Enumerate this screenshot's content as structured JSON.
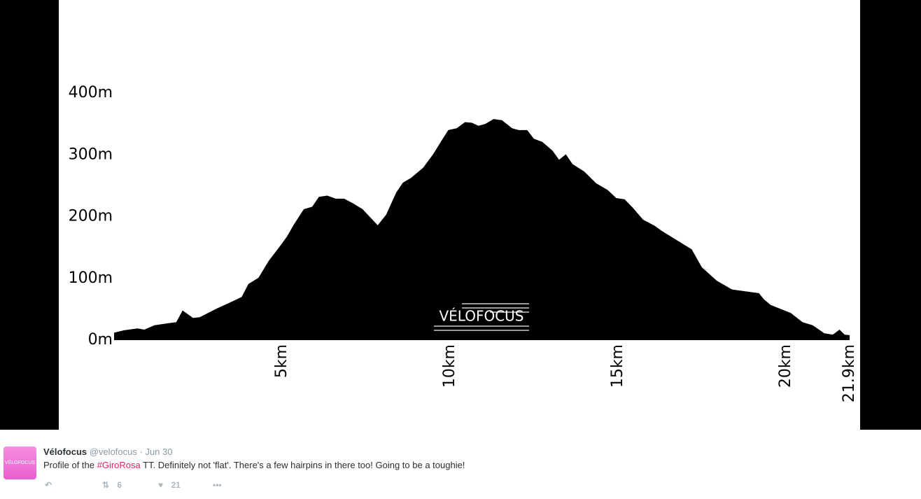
{
  "chart_data": {
    "type": "area",
    "watermark": "VÉLOFOCUS",
    "color": "#000000",
    "x": [
      0,
      0.3,
      0.7,
      0.9,
      1.2,
      1.7,
      1.85,
      2.04,
      2.35,
      2.55,
      3.05,
      3.45,
      3.8,
      4.0,
      4.3,
      4.6,
      4.95,
      5.15,
      5.35,
      5.65,
      5.9,
      6.1,
      6.35,
      6.6,
      6.85,
      7.1,
      7.4,
      7.85,
      8.1,
      8.4,
      8.6,
      8.85,
      9.2,
      9.5,
      9.75,
      9.95,
      10.2,
      10.45,
      10.65,
      10.85,
      11.05,
      11.3,
      11.55,
      11.85,
      12.05,
      12.3,
      12.5,
      12.75,
      13.05,
      13.25,
      13.45,
      13.65,
      14.0,
      14.35,
      14.7,
      14.95,
      15.2,
      15.45,
      15.75,
      16.1,
      16.3,
      16.75,
      17.2,
      17.5,
      17.95,
      18.4,
      18.95,
      19.2,
      19.35,
      19.55,
      20.15,
      20.5,
      20.8,
      21.15,
      21.4,
      21.6,
      21.75,
      21.9
    ],
    "values": [
      12,
      16,
      19,
      17,
      24,
      28,
      29,
      48,
      36,
      37,
      51,
      61,
      70,
      91,
      101,
      128,
      153,
      168,
      187,
      212,
      216,
      232,
      234,
      229,
      229,
      222,
      212,
      186,
      203,
      239,
      255,
      263,
      279,
      301,
      323,
      340,
      343,
      353,
      352,
      347,
      350,
      358,
      356,
      343,
      340,
      340,
      326,
      321,
      307,
      292,
      301,
      285,
      273,
      254,
      243,
      230,
      228,
      214,
      195,
      185,
      177,
      162,
      147,
      118,
      96,
      82,
      78,
      76,
      66,
      57,
      44,
      29,
      24,
      11,
      9,
      17,
      9,
      8
    ],
    "xlim": [
      0,
      21.9
    ],
    "ylim": [
      0,
      400
    ],
    "xticks": [
      {
        "value": 5,
        "label": "5km"
      },
      {
        "value": 10,
        "label": "10km"
      },
      {
        "value": 15,
        "label": "15km"
      },
      {
        "value": 20,
        "label": "20km"
      },
      {
        "value": 21.9,
        "label": "21.9km"
      }
    ],
    "yticks": [
      {
        "value": 0,
        "label": "0m"
      },
      {
        "value": 100,
        "label": "100m"
      },
      {
        "value": 200,
        "label": "200m"
      },
      {
        "value": 300,
        "label": "300m"
      },
      {
        "value": 400,
        "label": "400m"
      }
    ]
  },
  "tweet": {
    "avatar_text": "VÉLOFOCUS",
    "name": "Vélofocus",
    "handle": "@velofocus",
    "date": "· Jun 30",
    "text_parts": [
      "Profile of the ",
      "#GiroRosa",
      " TT. Definitely not 'flat'. There's a few hairpins in there too! Going to be a toughie!"
    ],
    "retweets": "6",
    "likes": "21"
  }
}
